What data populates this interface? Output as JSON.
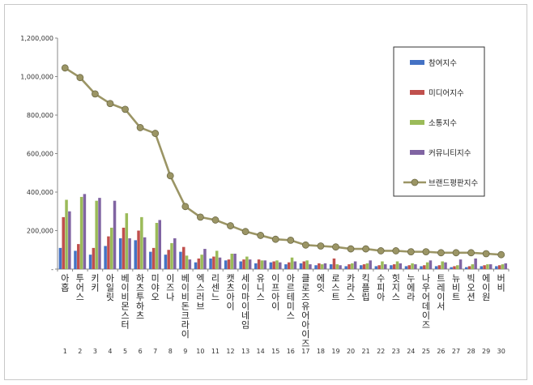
{
  "chart_data": {
    "type": "bar",
    "categories": [
      "아홉",
      "투어스",
      "키키",
      "아일릿",
      "베이비몬스터",
      "하츠투하츠",
      "미야오",
      "이즈나",
      "베이비돈크라이",
      "엑스러브",
      "리센느",
      "캣츠아이",
      "세이마이네임",
      "유니스",
      "이프아이",
      "아르테미스",
      "클로즈유어아이즈",
      "에잇",
      "로스트",
      "카라스",
      "킥플립",
      "수피아",
      "힛지스",
      "누에라",
      "나우어데이즈",
      "트레이서",
      "뉴비트",
      "빅오션",
      "에이원",
      "버비"
    ],
    "index_numbers": [
      "1",
      "2",
      "3",
      "4",
      "5",
      "6",
      "7",
      "8",
      "9",
      "10",
      "11",
      "12",
      "13",
      "14",
      "15",
      "16",
      "17",
      "18",
      "19",
      "20",
      "21",
      "22",
      "23",
      "24",
      "25",
      "26",
      "27",
      "28",
      "29",
      "30"
    ],
    "series": [
      {
        "name": "참여지수",
        "color": "#4472c4",
        "values": [
          110000,
          95000,
          75000,
          120000,
          160000,
          150000,
          90000,
          75000,
          90000,
          35000,
          55000,
          45000,
          40000,
          30000,
          35000,
          25000,
          30000,
          20000,
          25000,
          15000,
          20000,
          15000,
          20000,
          15000,
          15000,
          15000,
          10000,
          10000,
          15000,
          15000
        ]
      },
      {
        "name": "미디어지수",
        "color": "#c0504d",
        "values": [
          270000,
          130000,
          110000,
          170000,
          215000,
          200000,
          110000,
          100000,
          115000,
          55000,
          65000,
          50000,
          50000,
          50000,
          40000,
          35000,
          40000,
          30000,
          55000,
          25000,
          25000,
          20000,
          25000,
          20000,
          20000,
          20000,
          15000,
          15000,
          20000,
          20000
        ]
      },
      {
        "name": "소통지수",
        "color": "#9bbb59",
        "values": [
          360000,
          375000,
          355000,
          215000,
          290000,
          270000,
          240000,
          135000,
          70000,
          75000,
          95000,
          80000,
          65000,
          45000,
          45000,
          60000,
          45000,
          25000,
          25000,
          30000,
          30000,
          40000,
          40000,
          30000,
          35000,
          40000,
          20000,
          25000,
          25000,
          25000
        ]
      },
      {
        "name": "커뮤니티지수",
        "color": "#8064a2",
        "values": [
          300000,
          390000,
          370000,
          355000,
          160000,
          165000,
          255000,
          160000,
          50000,
          105000,
          60000,
          80000,
          50000,
          45000,
          35000,
          40000,
          25000,
          30000,
          20000,
          40000,
          45000,
          25000,
          30000,
          25000,
          45000,
          35000,
          50000,
          55000,
          25000,
          30000
        ]
      }
    ],
    "line": {
      "name": "브랜드평판지수",
      "color": "#9b9565",
      "values": [
        1045000,
        995000,
        910000,
        860000,
        830000,
        735000,
        705000,
        485000,
        325000,
        270000,
        255000,
        225000,
        195000,
        175000,
        155000,
        150000,
        125000,
        120000,
        115000,
        105000,
        105000,
        95000,
        95000,
        90000,
        90000,
        85000,
        85000,
        85000,
        80000,
        75000
      ]
    },
    "y_ticks": [
      "1,200,000",
      "1,000,000",
      "800,000",
      "600,000",
      "400,000",
      "200,000",
      "-"
    ],
    "ylim": [
      0,
      1200000
    ],
    "grid": false,
    "legend": "right"
  }
}
